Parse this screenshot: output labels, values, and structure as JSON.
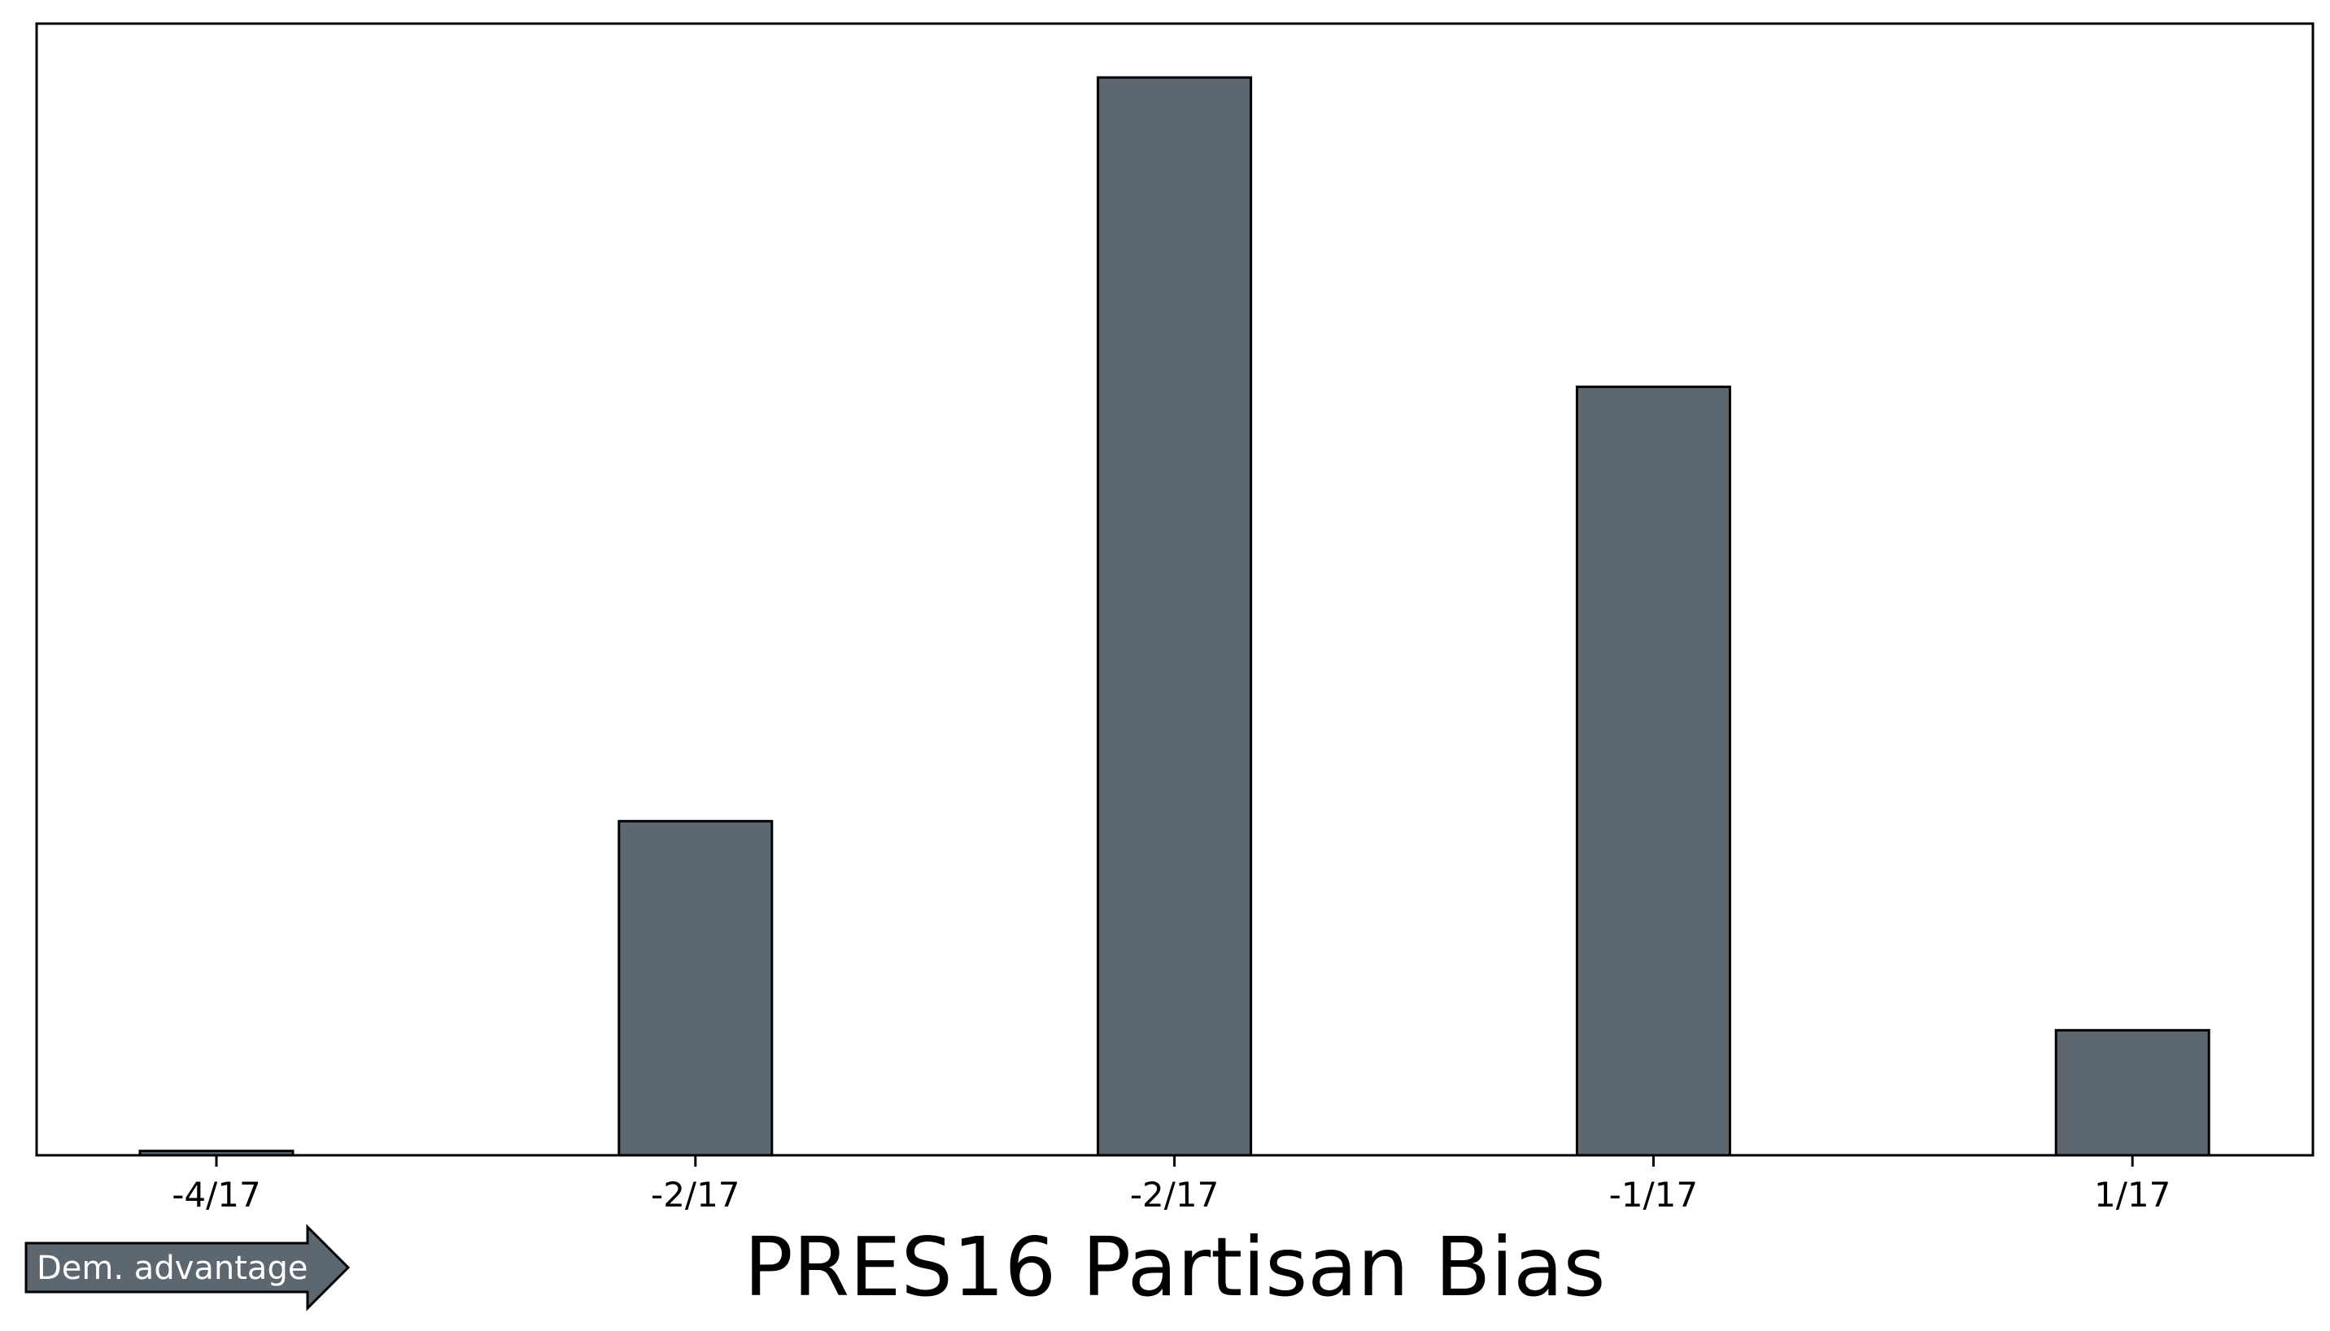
{
  "chart_data": {
    "type": "bar",
    "categories": [
      "-4/17",
      "",
      "-2/17",
      "",
      "-2/17",
      "",
      "-1/17",
      "",
      "1/17"
    ],
    "values": [
      0.4,
      0,
      31,
      0,
      100,
      0,
      71.3,
      0,
      11.6
    ],
    "xlabel": "PRES16 Partisan Bias",
    "ylabel": "",
    "ylim": [
      0,
      105
    ],
    "grid": false,
    "bar_color": "#5d6770",
    "edge_color": "#000000"
  },
  "annotation": {
    "arrow_label": "Dem. advantage",
    "arrow_color": "#5d6770"
  }
}
